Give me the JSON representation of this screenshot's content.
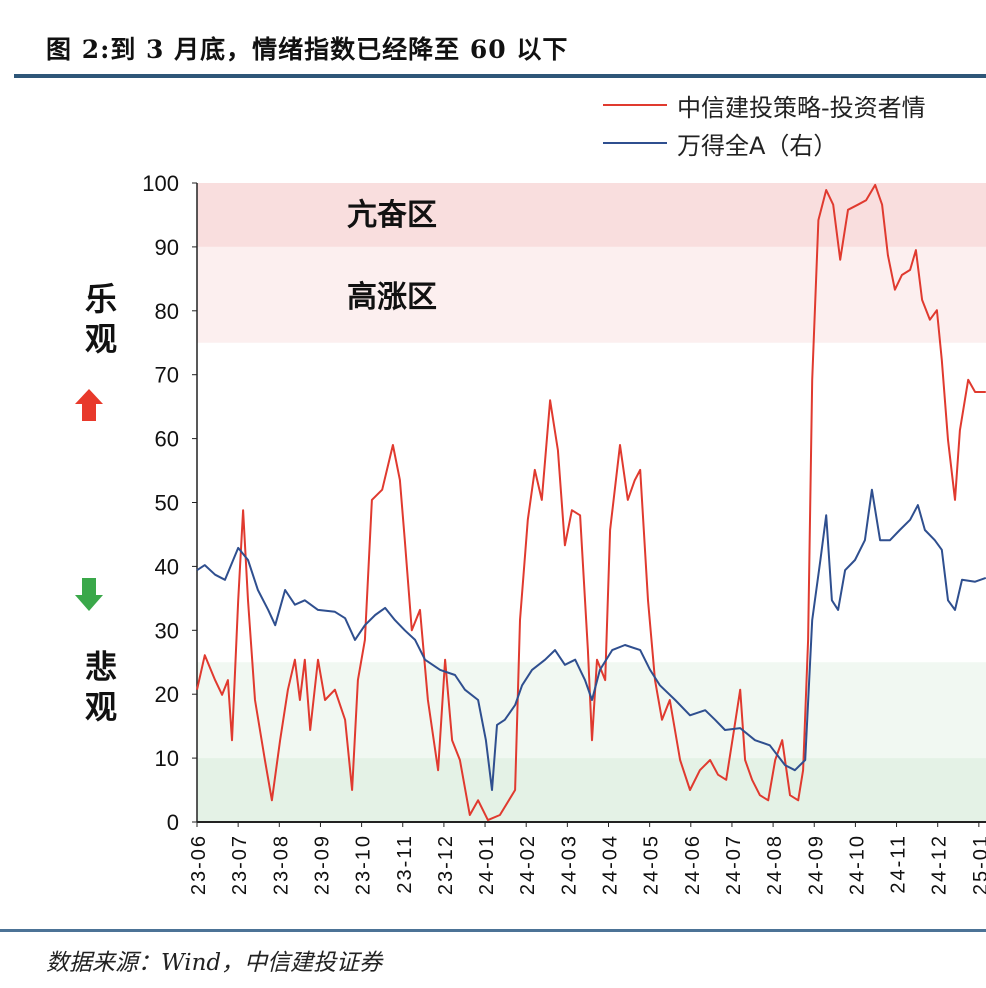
{
  "title": "图 2:到 3 月底，情绪指数已经降至 60 以下",
  "source": "数据来源：Wind，中信建投证券",
  "side_labels": {
    "optimistic": "乐观",
    "pessimistic": "悲观"
  },
  "zones": {
    "euphoric": "亢奋区",
    "high": "高涨区"
  },
  "colors": {
    "red": "#e03a2f",
    "blue": "#2f4f8f",
    "pink_dark": "#f9dede",
    "pink_light": "#fcefef",
    "green_dark": "#e4f2e6",
    "green_light": "#f1f8f2",
    "up_arrow": "#e8392b",
    "down_arrow": "#3aa84a"
  },
  "chart_data": {
    "type": "line",
    "title": "",
    "xlabel": "",
    "ylabel": "",
    "ylim": [
      0,
      100
    ],
    "yticks": [
      "0",
      "10",
      "20",
      "30",
      "40",
      "50",
      "60",
      "70",
      "80",
      "90",
      "100"
    ],
    "x_unit": "months since 23-06",
    "xlim": [
      0,
      19.17
    ],
    "xtick_labels": [
      "23-06",
      "23-07",
      "23-08",
      "23-09",
      "23-10",
      "23-11",
      "23-12",
      "24-01",
      "24-02",
      "24-03",
      "24-04",
      "24-05",
      "24-06",
      "24-07",
      "24-08",
      "24-09",
      "24-10",
      "24-11",
      "24-12",
      "25-01"
    ],
    "bands": [
      {
        "from": 90,
        "to": 100,
        "label_key": "euphoric"
      },
      {
        "from": 75,
        "to": 90,
        "label_key": "high"
      },
      {
        "from": 10,
        "to": 25
      },
      {
        "from": 0,
        "to": 10
      }
    ],
    "series": [
      {
        "name": "中信建投策略-投资者情",
        "axis": "left",
        "points": [
          [
            0,
            20.7
          ],
          [
            0.19,
            26.1
          ],
          [
            0.44,
            22.2
          ],
          [
            0.61,
            19.9
          ],
          [
            0.75,
            22.2
          ],
          [
            0.85,
            12.8
          ],
          [
            1.0,
            34.7
          ],
          [
            1.12,
            48.8
          ],
          [
            1.24,
            34.7
          ],
          [
            1.41,
            19.1
          ],
          [
            1.65,
            9.7
          ],
          [
            1.82,
            3.4
          ],
          [
            2.02,
            12.8
          ],
          [
            2.21,
            20.7
          ],
          [
            2.38,
            25.4
          ],
          [
            2.5,
            19.1
          ],
          [
            2.62,
            25.4
          ],
          [
            2.75,
            14.4
          ],
          [
            2.94,
            25.4
          ],
          [
            3.11,
            19.1
          ],
          [
            3.35,
            20.7
          ],
          [
            3.6,
            16
          ],
          [
            3.77,
            5
          ],
          [
            3.91,
            22.2
          ],
          [
            4.08,
            28.5
          ],
          [
            4.25,
            50.4
          ],
          [
            4.5,
            52
          ],
          [
            4.76,
            59
          ],
          [
            4.93,
            53.5
          ],
          [
            5.05,
            44.1
          ],
          [
            5.22,
            30
          ],
          [
            5.42,
            33.2
          ],
          [
            5.61,
            19.1
          ],
          [
            5.86,
            8.1
          ],
          [
            6.03,
            25.4
          ],
          [
            6.2,
            12.8
          ],
          [
            6.39,
            9.7
          ],
          [
            6.63,
            1.1
          ],
          [
            6.83,
            3.4
          ],
          [
            7.07,
            0.3
          ],
          [
            7.36,
            1.1
          ],
          [
            7.73,
            5
          ],
          [
            7.85,
            31.6
          ],
          [
            8.04,
            47.3
          ],
          [
            8.21,
            55.1
          ],
          [
            8.38,
            50.4
          ],
          [
            8.58,
            66
          ],
          [
            8.77,
            58.2
          ],
          [
            8.94,
            43.3
          ],
          [
            9.11,
            48.8
          ],
          [
            9.31,
            48
          ],
          [
            9.5,
            26.9
          ],
          [
            9.6,
            12.8
          ],
          [
            9.72,
            25.4
          ],
          [
            9.92,
            22.2
          ],
          [
            10.04,
            45.7
          ],
          [
            10.28,
            59
          ],
          [
            10.47,
            50.4
          ],
          [
            10.64,
            53.5
          ],
          [
            10.77,
            55.1
          ],
          [
            10.96,
            34.7
          ],
          [
            11.13,
            22.2
          ],
          [
            11.3,
            16
          ],
          [
            11.49,
            19.1
          ],
          [
            11.74,
            9.7
          ],
          [
            11.98,
            5
          ],
          [
            12.22,
            8.1
          ],
          [
            12.47,
            9.7
          ],
          [
            12.66,
            7.4
          ],
          [
            12.86,
            6.6
          ],
          [
            13.05,
            14.4
          ],
          [
            13.2,
            20.7
          ],
          [
            13.32,
            9.7
          ],
          [
            13.49,
            6.6
          ],
          [
            13.68,
            4.2
          ],
          [
            13.88,
            3.4
          ],
          [
            14.05,
            9.7
          ],
          [
            14.22,
            12.8
          ],
          [
            14.41,
            4.2
          ],
          [
            14.61,
            3.4
          ],
          [
            14.73,
            8.1
          ],
          [
            14.85,
            28.5
          ],
          [
            14.95,
            69.2
          ],
          [
            15.1,
            94.2
          ],
          [
            15.29,
            98.9
          ],
          [
            15.46,
            96.6
          ],
          [
            15.63,
            88
          ],
          [
            15.82,
            95.8
          ],
          [
            16.06,
            96.6
          ],
          [
            16.26,
            97.3
          ],
          [
            16.48,
            99.7
          ],
          [
            16.65,
            96.6
          ],
          [
            16.79,
            88.7
          ],
          [
            16.96,
            83.3
          ],
          [
            17.13,
            85.6
          ],
          [
            17.33,
            86.4
          ],
          [
            17.47,
            89.5
          ],
          [
            17.62,
            81.7
          ],
          [
            17.81,
            78.6
          ],
          [
            17.98,
            80.1
          ],
          [
            18.1,
            72.3
          ],
          [
            18.25,
            59.8
          ],
          [
            18.42,
            50.4
          ],
          [
            18.54,
            61.3
          ],
          [
            18.74,
            69.2
          ],
          [
            18.91,
            67.3
          ],
          [
            19.17,
            67.3
          ]
        ]
      },
      {
        "name": "万得全A（右）",
        "axis": "right (scale not visible; values in left-axis-equivalent units)",
        "points": [
          [
            0,
            39.4
          ],
          [
            0.19,
            40.2
          ],
          [
            0.44,
            38.7
          ],
          [
            0.68,
            37.9
          ],
          [
            1.0,
            42.9
          ],
          [
            1.24,
            41
          ],
          [
            1.48,
            36.3
          ],
          [
            1.73,
            33.2
          ],
          [
            1.9,
            30.8
          ],
          [
            2.14,
            36.3
          ],
          [
            2.38,
            34
          ],
          [
            2.62,
            34.7
          ],
          [
            2.94,
            33.2
          ],
          [
            3.35,
            32.9
          ],
          [
            3.6,
            31.9
          ],
          [
            3.84,
            28.5
          ],
          [
            4.08,
            30.8
          ],
          [
            4.33,
            32.4
          ],
          [
            4.57,
            33.5
          ],
          [
            4.81,
            31.6
          ],
          [
            5.05,
            30
          ],
          [
            5.3,
            28.5
          ],
          [
            5.54,
            25.4
          ],
          [
            5.91,
            23.8
          ],
          [
            6.27,
            23
          ],
          [
            6.51,
            20.7
          ],
          [
            6.83,
            19.1
          ],
          [
            7.02,
            12.8
          ],
          [
            7.17,
            5
          ],
          [
            7.29,
            15.2
          ],
          [
            7.48,
            16
          ],
          [
            7.73,
            18.3
          ],
          [
            7.9,
            21.4
          ],
          [
            8.14,
            23.8
          ],
          [
            8.46,
            25.4
          ],
          [
            8.7,
            26.9
          ],
          [
            8.94,
            24.6
          ],
          [
            9.19,
            25.4
          ],
          [
            9.43,
            22.2
          ],
          [
            9.6,
            19.1
          ],
          [
            9.79,
            23.8
          ],
          [
            10.09,
            26.9
          ],
          [
            10.4,
            27.7
          ],
          [
            10.77,
            26.9
          ],
          [
            11.01,
            23.8
          ],
          [
            11.25,
            21.4
          ],
          [
            11.62,
            19.1
          ],
          [
            11.98,
            16.7
          ],
          [
            12.35,
            17.5
          ],
          [
            12.59,
            16
          ],
          [
            12.83,
            14.4
          ],
          [
            13.2,
            14.7
          ],
          [
            13.56,
            12.8
          ],
          [
            13.92,
            12
          ],
          [
            14.29,
            8.9
          ],
          [
            14.53,
            8.1
          ],
          [
            14.78,
            9.7
          ],
          [
            14.95,
            31.6
          ],
          [
            15.15,
            41
          ],
          [
            15.29,
            48
          ],
          [
            15.43,
            34.7
          ],
          [
            15.58,
            33.2
          ],
          [
            15.75,
            39.4
          ],
          [
            15.99,
            41
          ],
          [
            16.23,
            44.1
          ],
          [
            16.4,
            52
          ],
          [
            16.6,
            44.1
          ],
          [
            16.84,
            44.1
          ],
          [
            17.08,
            45.7
          ],
          [
            17.33,
            47.3
          ],
          [
            17.52,
            49.6
          ],
          [
            17.69,
            45.7
          ],
          [
            17.93,
            44.1
          ],
          [
            18.1,
            42.6
          ],
          [
            18.25,
            34.7
          ],
          [
            18.42,
            33.2
          ],
          [
            18.59,
            37.9
          ],
          [
            18.91,
            37.6
          ],
          [
            19.17,
            38.2
          ]
        ]
      }
    ],
    "legend": "top-right"
  }
}
